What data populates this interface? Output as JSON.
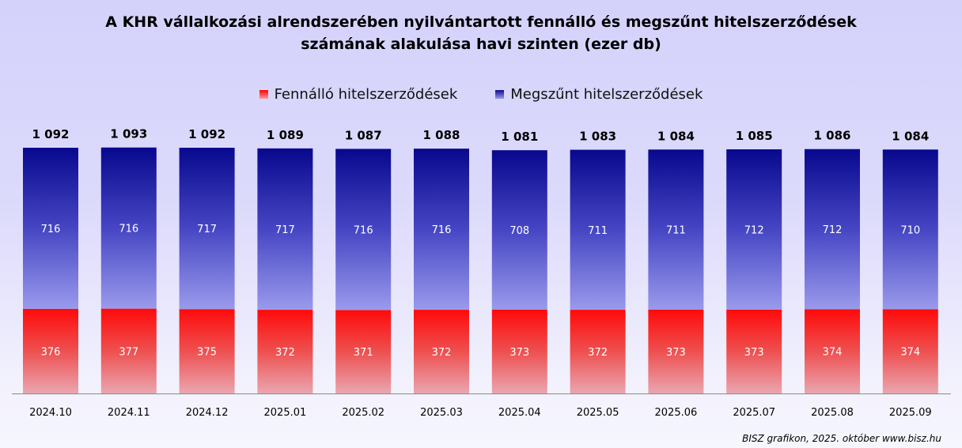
{
  "chart_data": {
    "type": "stacked-bar",
    "title_line1": "A KHR vállalkozási alrendszerében nyilvántartott fennálló és megszűnt hitelszerződések",
    "title_line2": "számának alakulása havi szinten (ezer db)",
    "categories": [
      "2024.10",
      "2024.11",
      "2024.12",
      "2025.01",
      "2025.02",
      "2025.03",
      "2025.04",
      "2025.05",
      "2025.06",
      "2025.07",
      "2025.08",
      "2025.09"
    ],
    "series": [
      {
        "name": "Fennálló hitelszerződések",
        "color": "#f01010",
        "values": [
          376,
          377,
          375,
          372,
          371,
          372,
          373,
          372,
          373,
          373,
          374,
          374
        ]
      },
      {
        "name": "Megszűnt hitelszerződések",
        "color": "#0a0a90",
        "values": [
          716,
          716,
          717,
          717,
          716,
          716,
          708,
          711,
          711,
          712,
          712,
          710
        ]
      }
    ],
    "totals": [
      "1 092",
      "1 093",
      "1 092",
      "1 089",
      "1 087",
      "1 088",
      "1 081",
      "1 083",
      "1 084",
      "1 085",
      "1 086",
      "1 084"
    ],
    "ylim": [
      0,
      1100
    ],
    "legend_position": "top",
    "grid": false
  },
  "footer": "BISZ grafikon, 2025.  október www.bisz.hu"
}
